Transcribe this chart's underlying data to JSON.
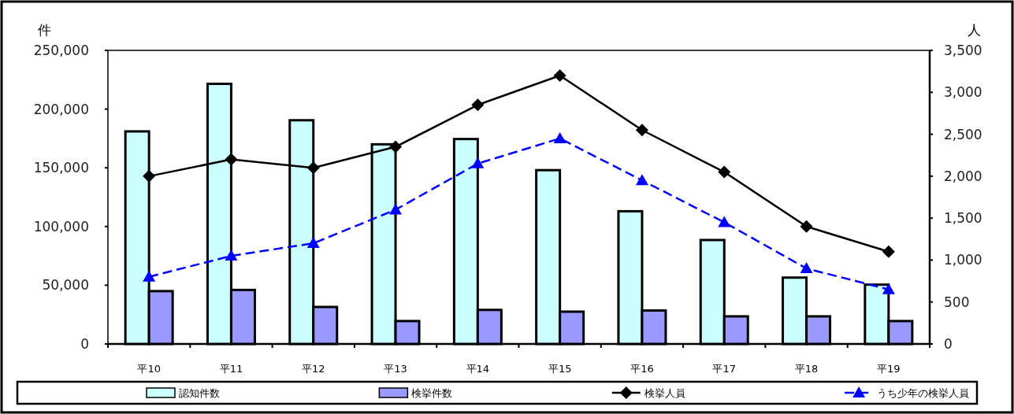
{
  "chart_data": {
    "type": "bar",
    "categories": [
      "平10",
      "平11",
      "平12",
      "平13",
      "平14",
      "平15",
      "平16",
      "平17",
      "平18",
      "平19"
    ],
    "ylabel": "件",
    "y2label": "人",
    "ylim": [
      0,
      250000
    ],
    "yticks": [
      0,
      {
        "value": 50000,
        "label": "50,000"
      },
      {
        "value": 100000,
        "label": "100,000"
      },
      {
        "value": 150000,
        "label": "150,000"
      },
      {
        "value": 200000,
        "label": "200,000"
      },
      {
        "value": 250000,
        "label": "250,000"
      }
    ],
    "y2lim": [
      0,
      3500
    ],
    "y2ticks": [
      0,
      500,
      {
        "value": 1000,
        "label": "1,000"
      },
      {
        "value": 1500,
        "label": "1,500"
      },
      {
        "value": 2000,
        "label": "2,000"
      },
      {
        "value": 2500,
        "label": "2,500"
      },
      {
        "value": 3000,
        "label": "3,000"
      },
      {
        "value": 3500,
        "label": "3,500"
      }
    ],
    "legend": "bottom",
    "series": [
      {
        "name": "認知件数",
        "color": "#ccffff",
        "values": [
          181000,
          221500,
          190500,
          170000,
          174500,
          148000,
          113000,
          88500,
          56500,
          50500
        ]
      },
      {
        "name": "検挙件数",
        "color": "#9999ff",
        "values": [
          45000,
          46000,
          31500,
          19500,
          29000,
          27500,
          28500,
          23500,
          23500,
          19500
        ]
      },
      {
        "name": "検挙人員",
        "type": "line",
        "axis": "y2",
        "color": "#000000",
        "marker": "diamond",
        "line_style": "solid",
        "values": [
          2000,
          2200,
          2100,
          2350,
          2850,
          3200,
          2550,
          2050,
          1400,
          1100
        ]
      },
      {
        "name": "うち少年の検挙人員",
        "type": "line",
        "axis": "y2",
        "color": "#0000ff",
        "marker": "triangle",
        "line_style": "dashed",
        "values": [
          800,
          1050,
          1200,
          1600,
          2150,
          2450,
          1950,
          1450,
          900,
          650
        ]
      }
    ]
  }
}
